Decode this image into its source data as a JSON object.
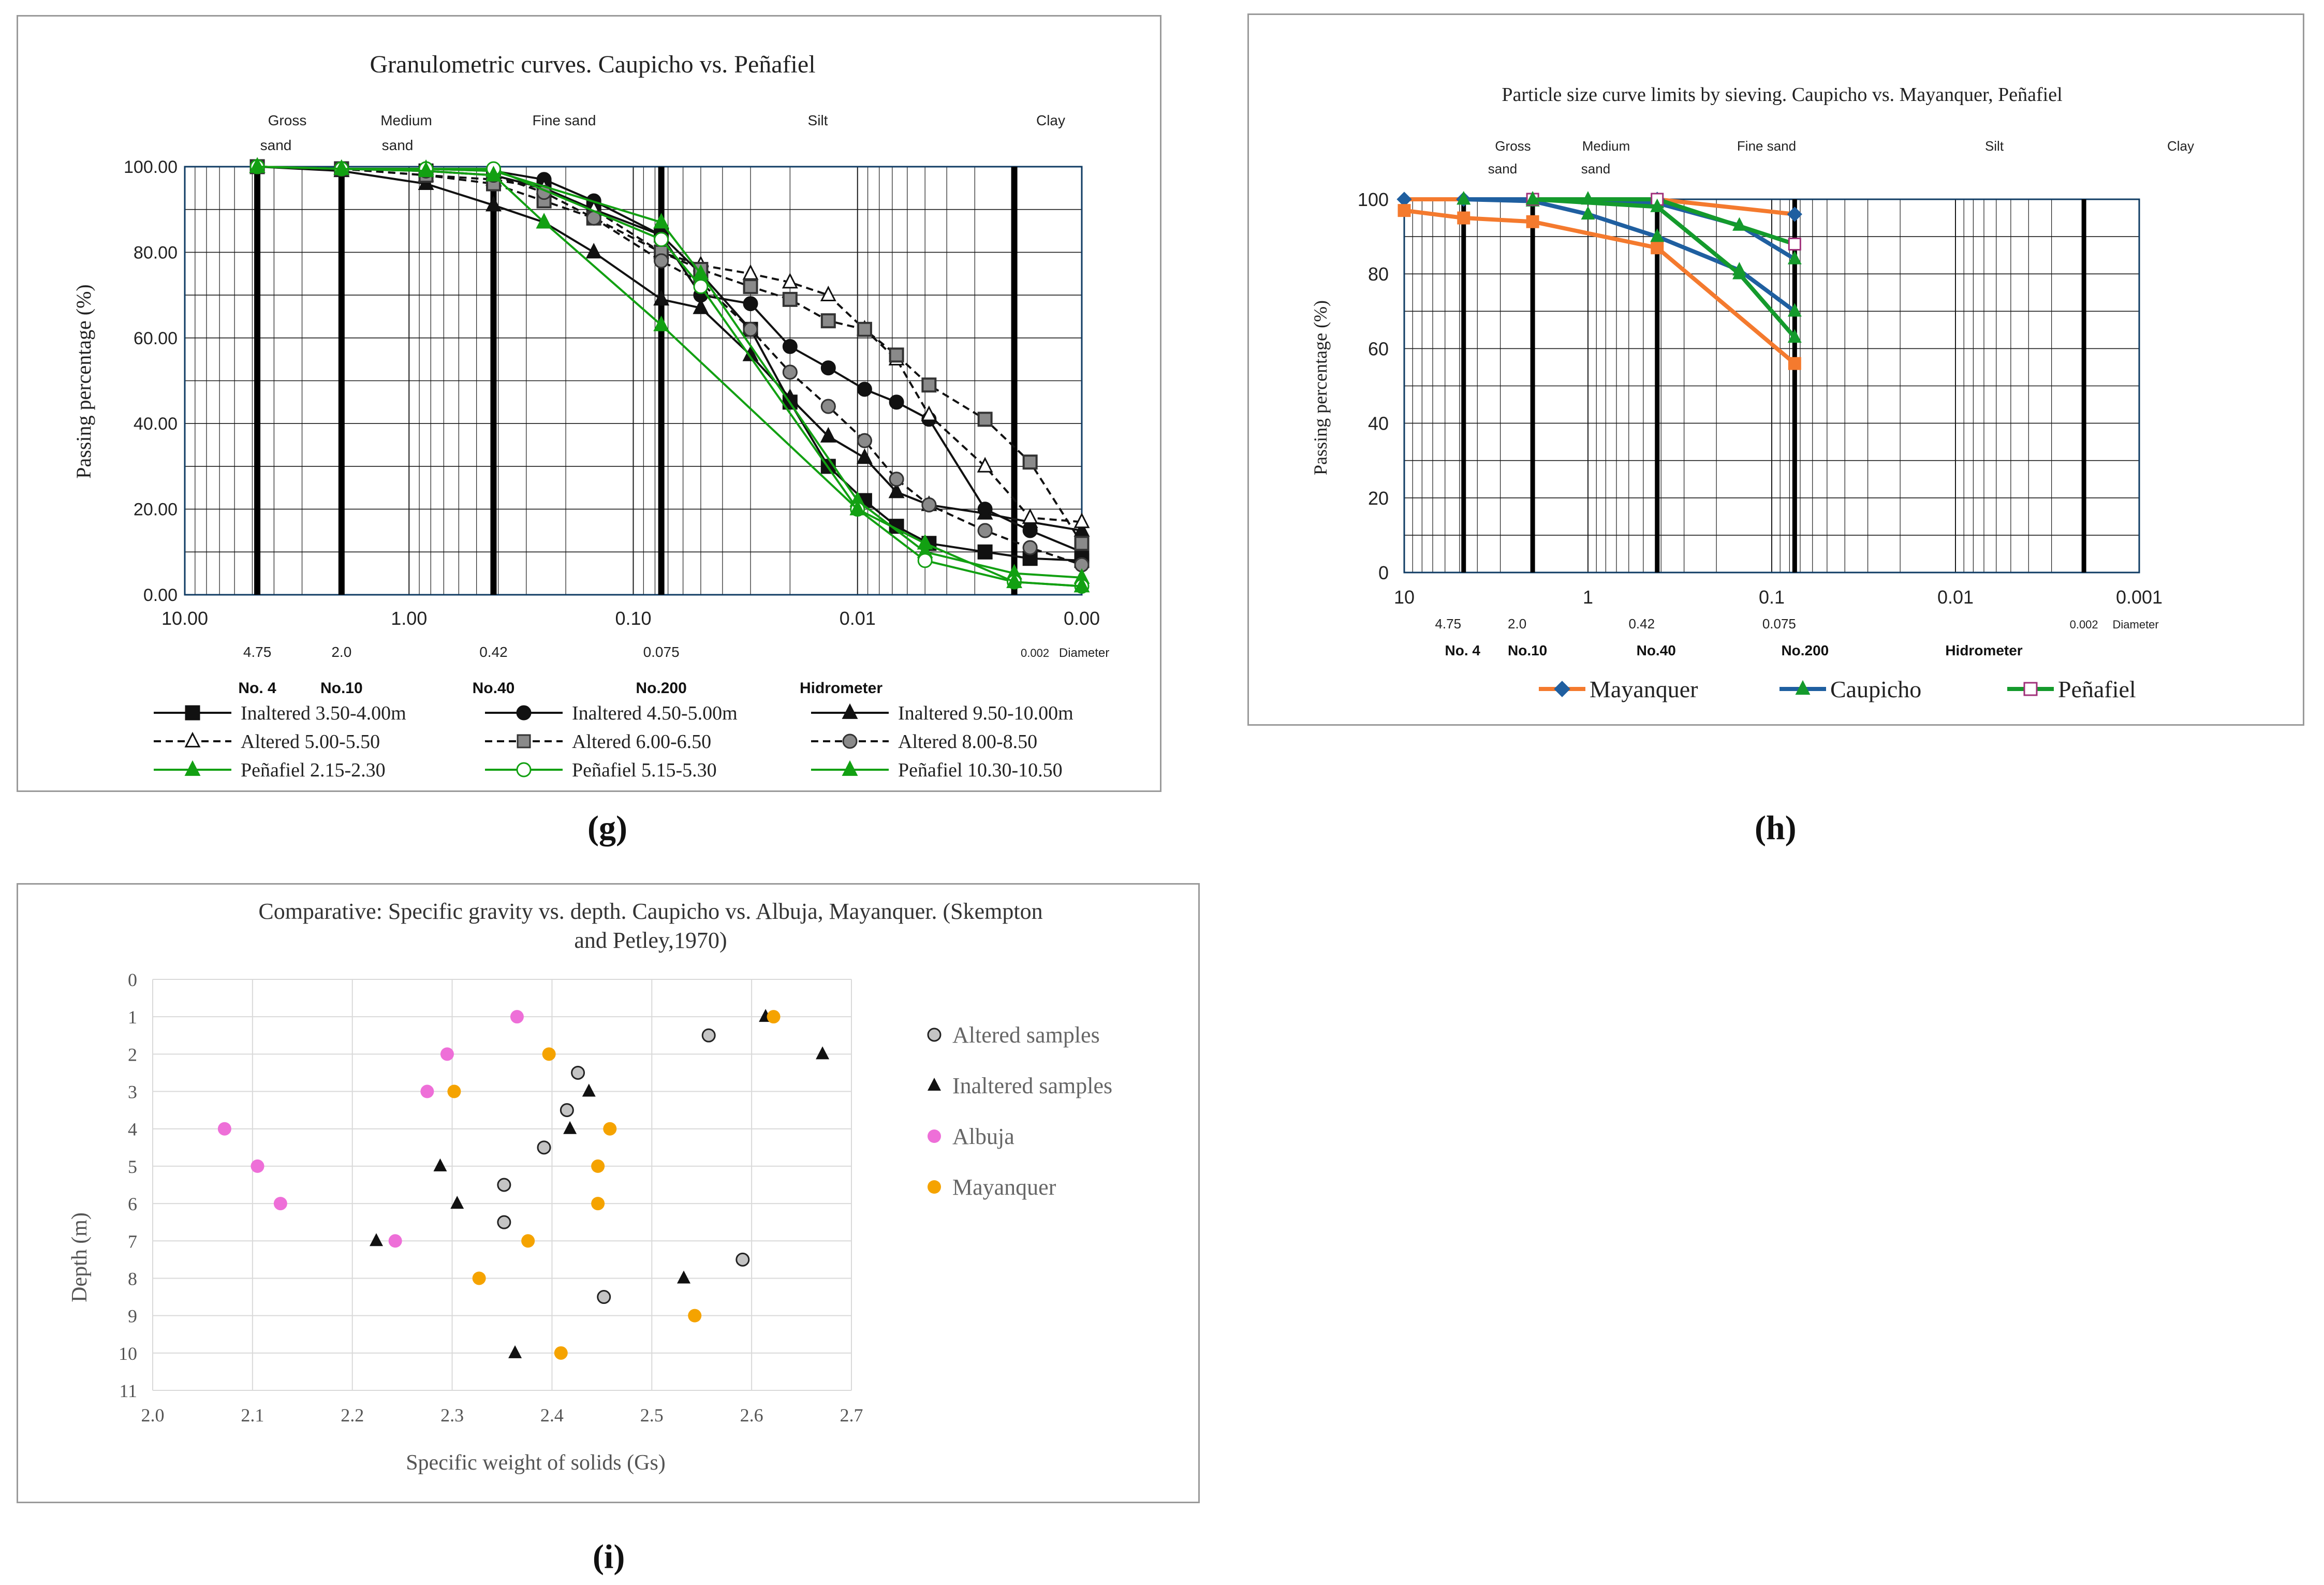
{
  "captions": {
    "g": "(g)",
    "h": "(h)",
    "i": "(i)"
  },
  "colors": {
    "black": "#111111",
    "gray": "#555555",
    "green": "#12a012",
    "orange": "#f47a2e",
    "blue": "#1f5fa0",
    "darkgreen": "#149a2c",
    "purple": "#a0307a",
    "pink": "#ee6fd8",
    "amber": "#f5a300",
    "grid": "#1a1a1a",
    "frame": "#0f3b63"
  },
  "chart_data": [
    {
      "id": "g",
      "type": "line",
      "title": "Granulometric curves. Caupicho vs. Peñafiel",
      "ylabel": "Passing percentage (%)",
      "xscale": "log-reversed",
      "xlim": [
        10,
        0.001
      ],
      "ylim": [
        0,
        100
      ],
      "x_tick_labels": [
        "10.00",
        "1.00",
        "0.10",
        "0.01",
        "0.00"
      ],
      "y_tick_labels": [
        "0.00",
        "20.00",
        "40.00",
        "60.00",
        "80.00",
        "100.00"
      ],
      "zones": [
        "Gross sand",
        "Medium sand",
        "Fine sand",
        "Silt",
        "Clay"
      ],
      "sieve_sizes": [
        "4.75",
        "2.0",
        "0.42",
        "0.075",
        "0.002"
      ],
      "sieve_names": [
        "No. 4",
        "No.10",
        "No.40",
        "No.200",
        "Hidrometer"
      ],
      "diameter_label": "Diameter",
      "series": [
        {
          "name": "Inaltered 3.50-4.00m",
          "marker": "square",
          "dash": "solid",
          "x": [
            4.75,
            2.0,
            0.84,
            0.42,
            0.25,
            0.15,
            0.075,
            0.05,
            0.03,
            0.02,
            0.0135,
            0.0093,
            0.0067,
            0.0048,
            0.0027,
            0.0017,
            0.001
          ],
          "y": [
            100,
            99.5,
            99,
            98,
            95,
            90,
            84,
            75,
            62,
            45,
            30,
            22,
            16,
            12,
            10,
            8.5,
            8
          ]
        },
        {
          "name": "Inaltered 4.50-5.00m",
          "marker": "circle",
          "dash": "solid",
          "x": [
            4.75,
            2.0,
            0.84,
            0.42,
            0.25,
            0.15,
            0.075,
            0.05,
            0.03,
            0.02,
            0.0135,
            0.0093,
            0.0067,
            0.0048,
            0.0027,
            0.0017,
            0.001
          ],
          "y": [
            100,
            99.5,
            99.5,
            99,
            97,
            92,
            84,
            70,
            68,
            58,
            53,
            48,
            45,
            41,
            20,
            15,
            10
          ]
        },
        {
          "name": "Inaltered 9.50-10.00m",
          "marker": "triangle",
          "dash": "solid",
          "x": [
            4.75,
            2.0,
            0.84,
            0.42,
            0.25,
            0.15,
            0.075,
            0.05,
            0.03,
            0.02,
            0.0135,
            0.0093,
            0.0067,
            0.0048,
            0.0027,
            0.0017,
            0.001
          ],
          "y": [
            100,
            99,
            96,
            91,
            87,
            80,
            69,
            67,
            56,
            46,
            37,
            32,
            24,
            21,
            19,
            17,
            15
          ]
        },
        {
          "name": "Altered 5.00-5.50",
          "marker": "triangle-open",
          "dash": "dashed",
          "x": [
            4.75,
            2.0,
            0.84,
            0.42,
            0.25,
            0.15,
            0.075,
            0.05,
            0.03,
            0.02,
            0.0135,
            0.0093,
            0.0067,
            0.0048,
            0.0027,
            0.0017,
            0.001
          ],
          "y": [
            100,
            99.5,
            98,
            97,
            95,
            90,
            80,
            77,
            75,
            73,
            70,
            62,
            55,
            42,
            30,
            18,
            17
          ]
        },
        {
          "name": "Altered 6.00-6.50",
          "marker": "square-gray",
          "dash": "dashed",
          "x": [
            4.75,
            2.0,
            0.84,
            0.42,
            0.25,
            0.15,
            0.075,
            0.05,
            0.03,
            0.02,
            0.0135,
            0.0093,
            0.0067,
            0.0048,
            0.0027,
            0.0017,
            0.001
          ],
          "y": [
            100,
            99.5,
            98,
            96,
            92,
            88,
            80,
            76,
            72,
            69,
            64,
            62,
            56,
            49,
            41,
            31,
            12
          ]
        },
        {
          "name": "Altered 8.00-8.50",
          "marker": "circle-gray",
          "dash": "dashed",
          "x": [
            4.75,
            2.0,
            0.84,
            0.42,
            0.25,
            0.15,
            0.075,
            0.05,
            0.03,
            0.02,
            0.0135,
            0.0093,
            0.0067,
            0.0048,
            0.0027,
            0.0017,
            0.001
          ],
          "y": [
            100,
            99.5,
            99,
            98,
            94,
            88,
            78,
            73,
            62,
            52,
            44,
            36,
            27,
            21,
            15,
            11,
            7
          ]
        },
        {
          "name": "Peñafiel 2.15-2.30",
          "marker": "triangle-green",
          "dash": "solid-green",
          "x": [
            4.75,
            2.0,
            0.84,
            0.42,
            0.075,
            0.05,
            0.01,
            0.005,
            0.002,
            0.001
          ],
          "y": [
            100,
            99.5,
            99.5,
            99,
            87,
            75,
            22,
            10,
            5,
            4
          ]
        },
        {
          "name": "Peñafiel 5.15-5.30",
          "marker": "circle-open-green",
          "dash": "solid-green",
          "x": [
            4.75,
            2.0,
            0.84,
            0.42,
            0.075,
            0.05,
            0.01,
            0.005,
            0.002,
            0.001
          ],
          "y": [
            100,
            99.5,
            99.5,
            99.5,
            83,
            72,
            20,
            8,
            3,
            2
          ]
        },
        {
          "name": "Peñafiel 10.30-10.50",
          "marker": "triangle-green",
          "dash": "solid-green",
          "x": [
            4.75,
            2.0,
            0.84,
            0.42,
            0.25,
            0.075,
            0.01,
            0.005,
            0.002,
            0.001
          ],
          "y": [
            100,
            99.5,
            99,
            98,
            87,
            63,
            20,
            12,
            3,
            2
          ]
        }
      ]
    },
    {
      "id": "h",
      "type": "line",
      "title": "Particle size curve limits by sieving.  Caupicho vs. Mayanquer, Peñafiel",
      "ylabel": "Passing percentage (%)",
      "xscale": "log-reversed",
      "xlim": [
        10,
        0.001
      ],
      "ylim": [
        0,
        100
      ],
      "x_tick_labels": [
        "10",
        "1",
        "0.1",
        "0.01",
        "0.001"
      ],
      "y_tick_labels": [
        "0",
        "20",
        "40",
        "60",
        "80",
        "100"
      ],
      "zones": [
        "Gross sand",
        "Medium sand",
        "Fine sand",
        "Silt",
        "Clay"
      ],
      "sieve_sizes": [
        "4.75",
        "2.0",
        "0.42",
        "0.075",
        "0.002"
      ],
      "sieve_names": [
        "No. 4",
        "No.10",
        "No.40",
        "No.200",
        "Hidrometer"
      ],
      "diameter_label": "Diameter",
      "series": [
        {
          "name": "Mayanquer",
          "color": "#f47a2e",
          "legend_color": "#1f5fa0",
          "marker": "diamond",
          "curves": [
            {
              "x": [
                10,
                4.75,
                2.0,
                0.42,
                0.075
              ],
              "y": [
                100,
                100,
                100,
                100,
                96
              ]
            },
            {
              "x": [
                10,
                4.75,
                2.0,
                0.42,
                0.075
              ],
              "y": [
                97,
                95,
                94,
                87,
                56
              ]
            }
          ]
        },
        {
          "name": "Caupicho",
          "color": "#1f5fa0",
          "marker": "triangle",
          "curves": [
            {
              "x": [
                4.75,
                2.0,
                1.0,
                0.42,
                0.15,
                0.075
              ],
              "y": [
                100,
                99.5,
                96,
                90,
                81,
                70
              ]
            },
            {
              "x": [
                4.75,
                2.0,
                1.0,
                0.42,
                0.15,
                0.075
              ],
              "y": [
                100,
                100,
                100,
                99,
                93,
                84
              ]
            }
          ]
        },
        {
          "name": "Peñafiel",
          "color": "#149a2c",
          "legend_color": "#a0307a",
          "marker": "square-open",
          "curves": [
            {
              "x": [
                2.0,
                0.42,
                0.075
              ],
              "y": [
                100,
                100,
                88
              ]
            },
            {
              "x": [
                2.0,
                0.42,
                0.15,
                0.075
              ],
              "y": [
                100,
                98,
                80,
                63
              ]
            }
          ]
        }
      ]
    },
    {
      "id": "i",
      "type": "scatter",
      "title": "Comparative: Specific gravity vs. depth. Caupicho vs. Albuja, Mayanquer. (Skempton and Petley,1970)",
      "title_lines": [
        "Comparative: Specific gravity vs. depth. Caupicho vs. Albuja, Mayanquer. (Skempton",
        "and Petley,1970)"
      ],
      "xlabel": "Specific weight of solids (Gs)",
      "ylabel": "Depth (m)",
      "xlim": [
        2.0,
        2.7
      ],
      "ylim": [
        11,
        0
      ],
      "x_tick_labels": [
        "2.0",
        "2.1",
        "2.2",
        "2.3",
        "2.4",
        "2.5",
        "2.6",
        "2.7"
      ],
      "y_tick_labels": [
        "0",
        "1",
        "2",
        "3",
        "4",
        "5",
        "6",
        "7",
        "8",
        "9",
        "10",
        "11"
      ],
      "series": [
        {
          "name": "Altered samples",
          "marker": "circle-gray",
          "points": [
            [
              2.557,
              1.5
            ],
            [
              2.426,
              2.5
            ],
            [
              2.415,
              3.5
            ],
            [
              2.392,
              4.5
            ],
            [
              2.352,
              5.5
            ],
            [
              2.352,
              6.5
            ],
            [
              2.591,
              7.5
            ],
            [
              2.452,
              8.5
            ]
          ]
        },
        {
          "name": "Inaltered samples",
          "marker": "triangle-black",
          "points": [
            [
              2.614,
              1.0
            ],
            [
              2.671,
              2.0
            ],
            [
              2.437,
              3.0
            ],
            [
              2.418,
              4.0
            ],
            [
              2.288,
              5.0
            ],
            [
              2.305,
              6.0
            ],
            [
              2.224,
              7.0
            ],
            [
              2.532,
              8.0
            ],
            [
              2.363,
              10.0
            ]
          ]
        },
        {
          "name": "Albuja",
          "marker": "circle-pink",
          "points": [
            [
              2.365,
              1.0
            ],
            [
              2.295,
              2.0
            ],
            [
              2.275,
              3.0
            ],
            [
              2.072,
              4.0
            ],
            [
              2.105,
              5.0
            ],
            [
              2.128,
              6.0
            ],
            [
              2.243,
              7.0
            ]
          ]
        },
        {
          "name": "Mayanquer",
          "marker": "circle-amber",
          "points": [
            [
              2.622,
              1.0
            ],
            [
              2.397,
              2.0
            ],
            [
              2.302,
              3.0
            ],
            [
              2.458,
              4.0
            ],
            [
              2.446,
              5.0
            ],
            [
              2.446,
              6.0
            ],
            [
              2.376,
              7.0
            ],
            [
              2.327,
              8.0
            ],
            [
              2.543,
              9.0
            ],
            [
              2.409,
              10.0
            ]
          ]
        }
      ]
    }
  ]
}
